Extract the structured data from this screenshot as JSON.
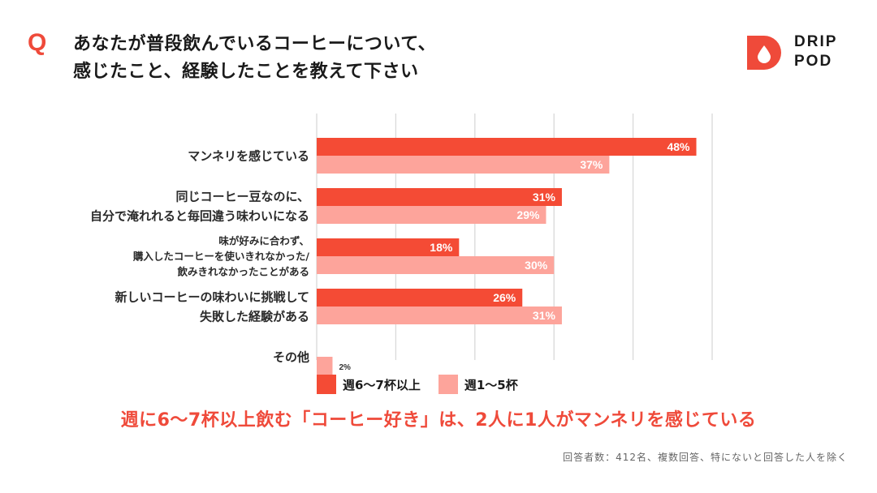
{
  "header": {
    "q_mark": "Q",
    "title_lines": [
      "あなたが普段飲んでいるコーヒーについて、",
      "感じたこと、経験したことを教えて下さい"
    ]
  },
  "logo": {
    "line1": "DRIP",
    "line2": "POD",
    "color": "#ef4a3a"
  },
  "colors": {
    "dark": "#f44b35",
    "light": "#fda49b",
    "grid": "#d9d9d9"
  },
  "chart_data": {
    "type": "bar",
    "orientation": "horizontal",
    "categories": [
      [
        "マンネリを感じている"
      ],
      [
        "同じコーヒー豆なのに、",
        "自分で淹れれると毎回違う味わいになる"
      ],
      [
        "味が好みに合わず、",
        "購入したコーヒーを使いきれなかった/",
        "飲みきれなかったことがある"
      ],
      [
        "新しいコーヒーの味わいに挑戦して",
        "失敗した経験がある"
      ],
      [
        "その他"
      ]
    ],
    "series": [
      {
        "name": "週6〜7杯以上",
        "values": [
          48,
          31,
          18,
          26,
          null
        ]
      },
      {
        "name": "週1〜5杯",
        "values": [
          37,
          29,
          30,
          31,
          2
        ]
      }
    ],
    "value_labels": [
      [
        "48%",
        "31%",
        "18%",
        "26%",
        ""
      ],
      [
        "37%",
        "29%",
        "30%",
        "31%",
        "2%"
      ]
    ],
    "xlim": [
      0,
      50
    ],
    "grid": true
  },
  "legend": {
    "items": [
      "週6〜7杯以上",
      "週1〜5杯"
    ]
  },
  "headline": "週に6〜7杯以上飲む「コーヒー好き」は、2人に1人がマンネリを感じている",
  "footnote": "回答者数：412名、複数回答、特にないと回答した人を除く"
}
